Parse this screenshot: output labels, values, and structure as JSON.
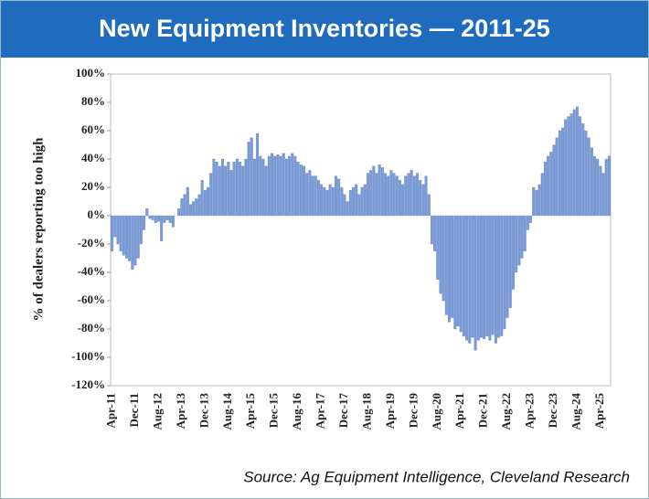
{
  "chart_data": {
    "type": "bar",
    "title": "New Equipment Inventories — 2011-25",
    "y_label": "% of dealers reporting too high",
    "source": "Source: Ag Equipment Intelligence, Cleveland Research",
    "color": "#7b9bd6",
    "ylim": [
      -120,
      100
    ],
    "yticks": [
      {
        "value": -120,
        "label": "-120%"
      },
      {
        "value": -100,
        "label": "-100%"
      },
      {
        "value": -80,
        "label": "-80%"
      },
      {
        "value": -60,
        "label": "-60%"
      },
      {
        "value": -40,
        "label": "-40%"
      },
      {
        "value": -20,
        "label": "-20%"
      },
      {
        "value": 0,
        "label": "0%"
      },
      {
        "value": 20,
        "label": "20%"
      },
      {
        "value": 40,
        "label": "40%"
      },
      {
        "value": 60,
        "label": "60%"
      },
      {
        "value": 80,
        "label": "80%"
      },
      {
        "value": 100,
        "label": "100%"
      }
    ],
    "categories": [
      "Apr-11",
      null,
      null,
      null,
      null,
      null,
      null,
      null,
      "Dec-11",
      null,
      null,
      null,
      null,
      null,
      null,
      null,
      "Aug-12",
      null,
      null,
      null,
      null,
      null,
      null,
      null,
      "Apr-13",
      null,
      null,
      null,
      null,
      null,
      null,
      null,
      "Dec-13",
      null,
      null,
      null,
      null,
      null,
      null,
      null,
      "Aug-14",
      null,
      null,
      null,
      null,
      null,
      null,
      null,
      "Apr-15",
      null,
      null,
      null,
      null,
      null,
      null,
      null,
      "Dec-15",
      null,
      null,
      null,
      null,
      null,
      null,
      null,
      "Aug-16",
      null,
      null,
      null,
      null,
      null,
      null,
      null,
      "Apr-17",
      null,
      null,
      null,
      null,
      null,
      null,
      null,
      "Dec-17",
      null,
      null,
      null,
      null,
      null,
      null,
      null,
      "Aug-18",
      null,
      null,
      null,
      null,
      null,
      null,
      null,
      "Apr-19",
      null,
      null,
      null,
      null,
      null,
      null,
      null,
      "Dec-19",
      null,
      null,
      null,
      null,
      null,
      null,
      null,
      "Aug-20",
      null,
      null,
      null,
      null,
      null,
      null,
      null,
      "Apr-21",
      null,
      null,
      null,
      null,
      null,
      null,
      null,
      "Dec-21",
      null,
      null,
      null,
      null,
      null,
      null,
      null,
      "Aug-22",
      null,
      null,
      null,
      null,
      null,
      null,
      null,
      "Apr-23",
      null,
      null,
      null,
      null,
      null,
      null,
      null,
      "Dec-23",
      null,
      null,
      null,
      null,
      null,
      null,
      null,
      "Aug-24",
      null,
      null,
      null,
      null,
      null,
      null,
      null,
      "Apr-25",
      null,
      null,
      null
    ],
    "values": [
      -25,
      -15,
      -20,
      -25,
      -28,
      -30,
      -32,
      -38,
      -35,
      -30,
      -20,
      -10,
      5,
      -2,
      -3,
      -5,
      -4,
      -18,
      -5,
      -3,
      -5,
      -8,
      0,
      5,
      12,
      15,
      20,
      8,
      10,
      12,
      15,
      25,
      18,
      20,
      30,
      40,
      38,
      35,
      40,
      35,
      38,
      32,
      38,
      40,
      38,
      35,
      40,
      52,
      55,
      40,
      58,
      42,
      40,
      35,
      42,
      44,
      42,
      43,
      42,
      44,
      40,
      42,
      44,
      42,
      38,
      36,
      35,
      30,
      32,
      28,
      28,
      25,
      22,
      20,
      18,
      22,
      20,
      28,
      26,
      20,
      15,
      10,
      18,
      20,
      22,
      15,
      20,
      22,
      30,
      32,
      35,
      30,
      36,
      34,
      30,
      28,
      32,
      30,
      28,
      25,
      22,
      28,
      30,
      32,
      28,
      30,
      25,
      22,
      28,
      15,
      -20,
      -25,
      -45,
      -55,
      -60,
      -70,
      -75,
      -72,
      -80,
      -78,
      -82,
      -85,
      -88,
      -90,
      -86,
      -95,
      -88,
      -86,
      -87,
      -85,
      -88,
      -84,
      -90,
      -86,
      -85,
      -80,
      -72,
      -65,
      -52,
      -40,
      -35,
      -30,
      -25,
      -10,
      -5,
      20,
      18,
      22,
      30,
      38,
      42,
      45,
      50,
      55,
      60,
      62,
      68,
      70,
      72,
      75,
      77,
      70,
      65,
      60,
      55,
      48,
      42,
      40,
      35,
      30,
      40,
      42
    ]
  }
}
